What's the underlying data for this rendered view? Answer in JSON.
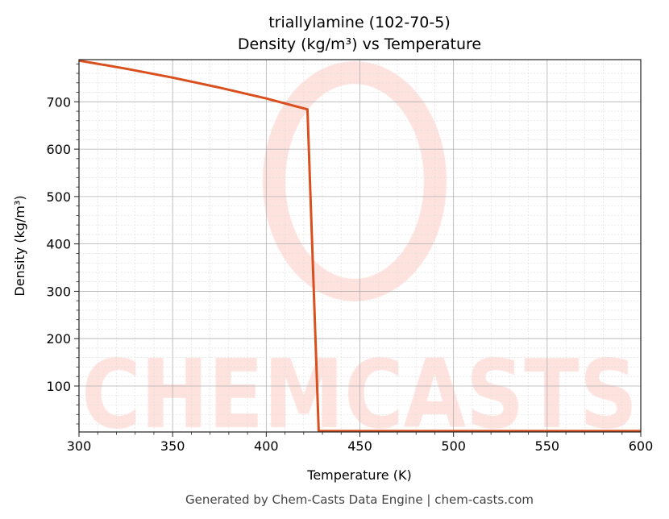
{
  "chart_data": {
    "type": "line",
    "title": "triallylamine (102-70-5)",
    "subtitle": "Density (kg/m³) vs Temperature",
    "xlabel": "Temperature (K)",
    "ylabel": "Density (kg/m³)",
    "xlim": [
      300,
      600
    ],
    "ylim": [
      3,
      789
    ],
    "xticks": [
      300,
      350,
      400,
      450,
      500,
      550,
      600
    ],
    "yticks": [
      100,
      200,
      300,
      400,
      500,
      600,
      700
    ],
    "grid": true,
    "series": [
      {
        "name": "Density",
        "color": "#d94f1e",
        "x": [
          300,
          325,
          350,
          375,
          400,
          422,
          428,
          450,
          500,
          550,
          600
        ],
        "y": [
          787,
          770,
          751,
          730,
          707,
          684,
          5,
          5,
          5,
          5,
          5
        ]
      }
    ],
    "watermark": "CHEMCASTS",
    "footer": "Generated by Chem-Casts Data Engine | chem-casts.com"
  }
}
